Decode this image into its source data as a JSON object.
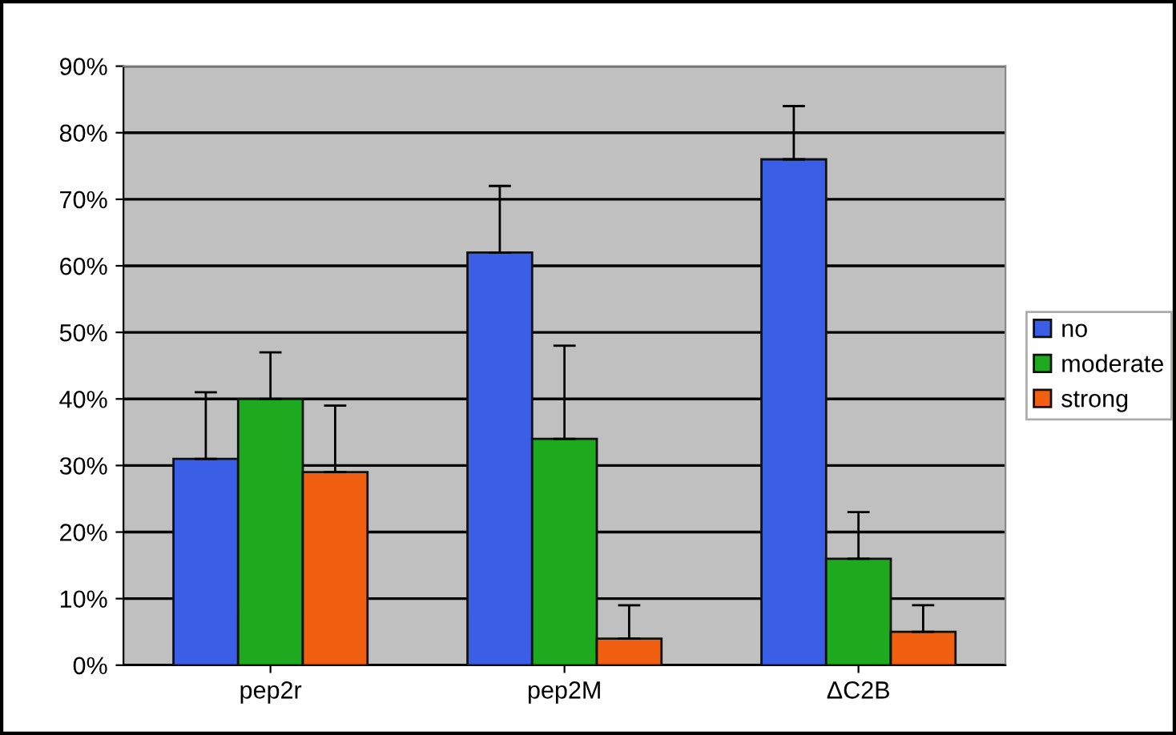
{
  "chart_data": {
    "type": "bar",
    "categories": [
      "pep2r",
      "pep2M",
      "ΔC2B"
    ],
    "series": [
      {
        "name": "no",
        "color": "#3a5fe6",
        "values": [
          31,
          62,
          76
        ],
        "errors": [
          [
            31,
            41
          ],
          [
            62,
            72
          ],
          [
            76,
            84
          ]
        ]
      },
      {
        "name": "moderate",
        "color": "#1eaa1e",
        "values": [
          40,
          34,
          16
        ],
        "errors": [
          [
            40,
            47
          ],
          [
            34,
            48
          ],
          [
            16,
            23
          ]
        ]
      },
      {
        "name": "strong",
        "color": "#f06010",
        "values": [
          29,
          4,
          5
        ],
        "errors": [
          [
            29,
            39
          ],
          [
            4,
            9
          ],
          [
            5,
            9
          ]
        ]
      }
    ],
    "ylim": [
      0,
      90
    ],
    "yticks": [
      {
        "value": 0,
        "label": "0%"
      },
      {
        "value": 10,
        "label": "10%"
      },
      {
        "value": 20,
        "label": "20%"
      },
      {
        "value": 30,
        "label": "30%"
      },
      {
        "value": 40,
        "label": "40%"
      },
      {
        "value": 50,
        "label": "50%"
      },
      {
        "value": 60,
        "label": "60%"
      },
      {
        "value": 70,
        "label": "70%"
      },
      {
        "value": 80,
        "label": "80%"
      },
      {
        "value": 90,
        "label": "90%"
      }
    ],
    "grid": "y",
    "legend": "right"
  }
}
